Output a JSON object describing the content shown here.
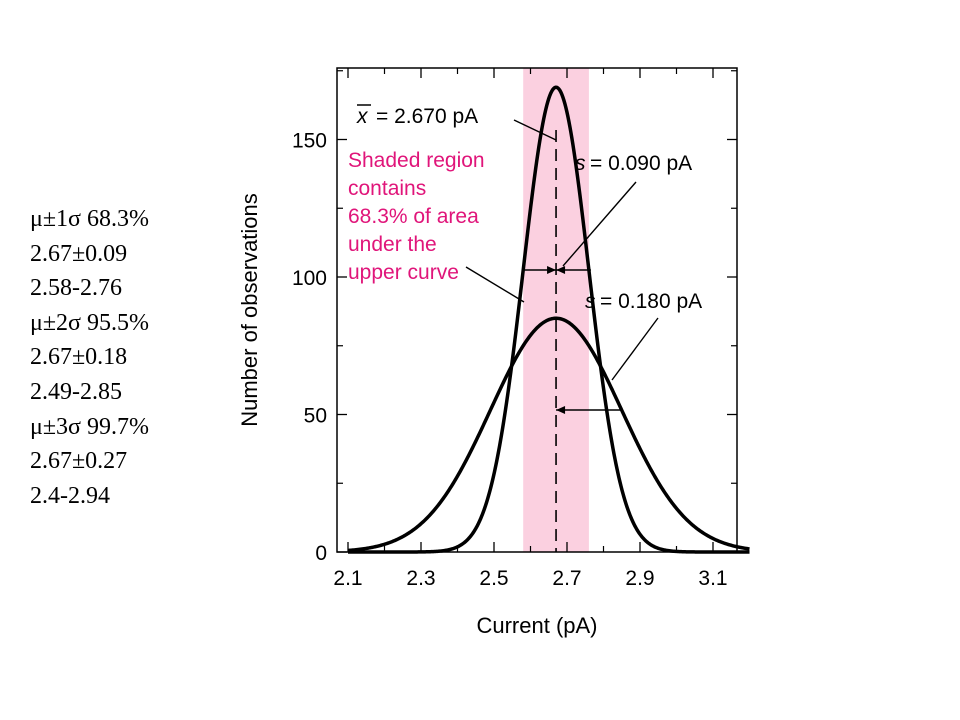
{
  "stats_panel": {
    "lines": [
      "μ±1σ  68.3%",
      "2.67±0.09",
      "2.58-2.76",
      "μ±2σ  95.5%",
      "2.67±0.18",
      "2.49-2.85",
      "μ±3σ  99.7%",
      "2.67±0.27",
      "2.4-2.94"
    ]
  },
  "colors": {
    "curve": "#000000",
    "shade": "#fbd0e0",
    "highlight_text": "#e0157a"
  },
  "chart_data": {
    "type": "line",
    "xlabel": "Current (pA)",
    "ylabel": "Number of observations",
    "xlim": [
      2.1,
      3.2
    ],
    "ylim": [
      0,
      170
    ],
    "xticks": [
      2.1,
      2.3,
      2.5,
      2.7,
      2.9,
      3.1
    ],
    "yticks": [
      0,
      50,
      100,
      150
    ],
    "series": [
      {
        "mean": 2.67,
        "sd": 0.09,
        "peak": 169
      },
      {
        "mean": 2.67,
        "sd": 0.18,
        "peak": 85
      }
    ],
    "shaded_region": [
      2.58,
      2.76
    ],
    "mean_line": 2.67,
    "annotations": {
      "mean_label": "= 2.670 pA",
      "mean_symbol": "x",
      "narrow_label": "= 0.090 pA",
      "wide_label": "= 0.180 pA",
      "s_symbol": "s",
      "shaded_text": [
        "Shaded region",
        "contains",
        "68.3% of area",
        "under the",
        "upper curve"
      ]
    }
  }
}
